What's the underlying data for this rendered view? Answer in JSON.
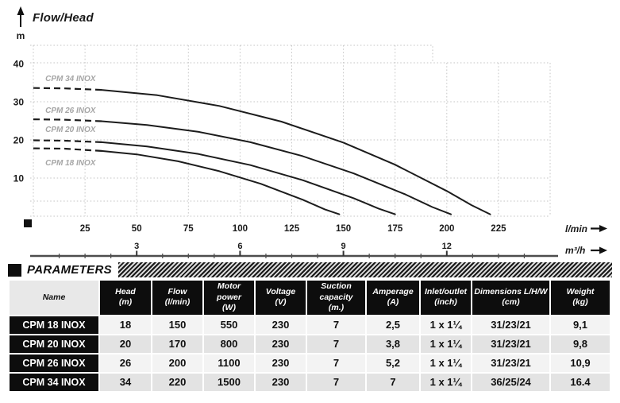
{
  "chart": {
    "title": "Flow/Head",
    "y_axis_unit": "m",
    "x_axis_unit_primary": "l/min",
    "x_axis_unit_secondary": "m³/h"
  },
  "chart_data": {
    "type": "line",
    "title": "Flow/Head",
    "ylabel": "m",
    "xlabel": "l/min",
    "x2label": "m³/h",
    "xlim_lmin": [
      0,
      250
    ],
    "ylim_m": [
      0,
      45
    ],
    "grid": "dotted",
    "x_ticks_lmin": [
      25,
      50,
      75,
      100,
      125,
      150,
      175,
      200,
      225
    ],
    "x_ticks_m3h": [
      {
        "label": "3",
        "at_lmin": 50
      },
      {
        "label": "6",
        "at_lmin": 100
      },
      {
        "label": "9",
        "at_lmin": 150
      },
      {
        "label": "12",
        "at_lmin": 200
      }
    ],
    "y_ticks_m": [
      10,
      20,
      30,
      40
    ],
    "series": [
      {
        "name": "CPM 34 INOX",
        "shutoff_head_m": 33.6,
        "max_flow_lmin": 221,
        "dash_until_lmin": 33,
        "label_pos": {
          "flow": 5.8,
          "head": 35.4
        },
        "points": [
          [
            0,
            33.6
          ],
          [
            15,
            33.5
          ],
          [
            33,
            33.1
          ],
          [
            60,
            31.7
          ],
          [
            90,
            28.9
          ],
          [
            120,
            24.8
          ],
          [
            150,
            19.3
          ],
          [
            175,
            13.5
          ],
          [
            200,
            6.6
          ],
          [
            212,
            2.9
          ],
          [
            221,
            0.5
          ]
        ]
      },
      {
        "name": "CPM 26 INOX",
        "shutoff_head_m": 25.4,
        "max_flow_lmin": 202,
        "dash_until_lmin": 33,
        "label_pos": {
          "flow": 5.8,
          "head": 27.1
        },
        "points": [
          [
            0,
            25.4
          ],
          [
            15,
            25.3
          ],
          [
            33,
            24.9
          ],
          [
            55,
            23.9
          ],
          [
            80,
            22.1
          ],
          [
            105,
            19.4
          ],
          [
            130,
            15.8
          ],
          [
            155,
            11.2
          ],
          [
            180,
            5.7
          ],
          [
            193,
            2.4
          ],
          [
            202,
            0.5
          ]
        ]
      },
      {
        "name": "CPM 20 INOX",
        "shutoff_head_m": 19.9,
        "max_flow_lmin": 175,
        "dash_until_lmin": 33,
        "label_pos": {
          "flow": 5.8,
          "head": 22.1
        },
        "points": [
          [
            0,
            19.9
          ],
          [
            15,
            19.8
          ],
          [
            33,
            19.4
          ],
          [
            55,
            18.3
          ],
          [
            80,
            16.3
          ],
          [
            105,
            13.4
          ],
          [
            130,
            9.5
          ],
          [
            155,
            4.7
          ],
          [
            167,
            2.0
          ],
          [
            175,
            0.5
          ]
        ]
      },
      {
        "name": "CPM 18 INOX",
        "shutoff_head_m": 17.8,
        "max_flow_lmin": 148,
        "dash_until_lmin": 33,
        "label_pos": {
          "flow": 5.8,
          "head": 13.3
        },
        "points": [
          [
            0,
            17.8
          ],
          [
            15,
            17.7
          ],
          [
            33,
            17.1
          ],
          [
            50,
            16.2
          ],
          [
            70,
            14.4
          ],
          [
            90,
            11.8
          ],
          [
            110,
            8.5
          ],
          [
            130,
            4.4
          ],
          [
            141,
            1.8
          ],
          [
            148,
            0.5
          ]
        ]
      }
    ]
  },
  "parameters": {
    "title": "PARAMETERS",
    "columns": [
      {
        "label": "Name",
        "unit": ""
      },
      {
        "label": "Head",
        "unit": "(m)"
      },
      {
        "label": "Flow",
        "unit": "(l/min)"
      },
      {
        "label": "Motor power",
        "unit": "(W)"
      },
      {
        "label": "Voltage",
        "unit": "(V)"
      },
      {
        "label": "Suction capacity",
        "unit": "(m.)"
      },
      {
        "label": "Amperage",
        "unit": "(A)"
      },
      {
        "label": "Inlet/outlet",
        "unit": "(inch)"
      },
      {
        "label": "Dimensions L/H/W",
        "unit": "(cm)"
      },
      {
        "label": "Weight",
        "unit": "(kg)"
      }
    ],
    "rows": [
      {
        "name": "CPM 18 INOX",
        "values": [
          "18",
          "150",
          "550",
          "230",
          "7",
          "2,5",
          "1 x 1¼",
          "31/23/21",
          "9,1"
        ]
      },
      {
        "name": "CPM 20 INOX",
        "values": [
          "20",
          "170",
          "800",
          "230",
          "7",
          "3,8",
          "1 x 1¼",
          "31/23/21",
          "9,8"
        ]
      },
      {
        "name": "CPM 26 INOX",
        "values": [
          "26",
          "200",
          "1100",
          "230",
          "7",
          "5,2",
          "1 x 1¼",
          "31/23/21",
          "10,9"
        ]
      },
      {
        "name": "CPM 34 INOX",
        "values": [
          "34",
          "220",
          "1500",
          "230",
          "7",
          "7",
          "1 x 1¼",
          "36/25/24",
          "16.4"
        ]
      }
    ]
  }
}
